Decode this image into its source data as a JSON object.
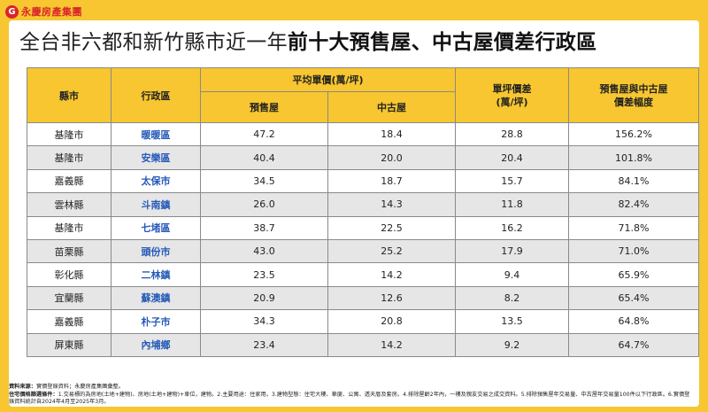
{
  "brand": {
    "mark": "G",
    "name": "永慶房產集團"
  },
  "title": {
    "prefix": "全台非六都和新竹縣市近一年",
    "emphasis": "前十大預售屋、中古屋價差行政區"
  },
  "table": {
    "headers": {
      "county": "縣市",
      "district": "行政區",
      "avg_price": "平均單價(萬/坪)",
      "presale": "預售屋",
      "used": "中古屋",
      "diff_line1": "單坪價差",
      "diff_line2": "(萬/坪)",
      "pct_line1": "預售屋與中古屋",
      "pct_line2": "價差幅度"
    },
    "rows": [
      {
        "county": "基隆市",
        "district": "暖暖區",
        "presale": "47.2",
        "used": "18.4",
        "diff": "28.8",
        "pct": "156.2%"
      },
      {
        "county": "基隆市",
        "district": "安樂區",
        "presale": "40.4",
        "used": "20.0",
        "diff": "20.4",
        "pct": "101.8%"
      },
      {
        "county": "嘉義縣",
        "district": "太保市",
        "presale": "34.5",
        "used": "18.7",
        "diff": "15.7",
        "pct": "84.1%"
      },
      {
        "county": "雲林縣",
        "district": "斗南鎮",
        "presale": "26.0",
        "used": "14.3",
        "diff": "11.8",
        "pct": "82.4%"
      },
      {
        "county": "基隆市",
        "district": "七堵區",
        "presale": "38.7",
        "used": "22.5",
        "diff": "16.2",
        "pct": "71.8%"
      },
      {
        "county": "苗栗縣",
        "district": "頭份市",
        "presale": "43.0",
        "used": "25.2",
        "diff": "17.9",
        "pct": "71.0%"
      },
      {
        "county": "彰化縣",
        "district": "二林鎮",
        "presale": "23.5",
        "used": "14.2",
        "diff": "9.4",
        "pct": "65.9%"
      },
      {
        "county": "宜蘭縣",
        "district": "蘇澳鎮",
        "presale": "20.9",
        "used": "12.6",
        "diff": "8.2",
        "pct": "65.4%"
      },
      {
        "county": "嘉義縣",
        "district": "朴子市",
        "presale": "34.3",
        "used": "20.8",
        "diff": "13.5",
        "pct": "64.8%"
      },
      {
        "county": "屏東縣",
        "district": "內埔鄉",
        "presale": "23.4",
        "used": "14.2",
        "diff": "9.2",
        "pct": "64.7%"
      }
    ]
  },
  "notes": {
    "source_label": "資料來源：",
    "source_text": "實價登錄資料；永慶房產集團彙整。",
    "criteria_label": "住宅價格篩選條件：",
    "criteria_text": "1.交易標的為房地(土地+建物)、房地(土地+建物)+車位，建物。2.主要用途：住家用。3.建物型態：住宅大樓、華廈、公寓、透天厝及套房。4.排除屋齡2年內，一樓及親友交易之成交資料。5.排除預售屋年交易量、中古屋年交易量100件以下行政區。6.實價登錄資料統計自2024年4月至2025年3月。"
  }
}
